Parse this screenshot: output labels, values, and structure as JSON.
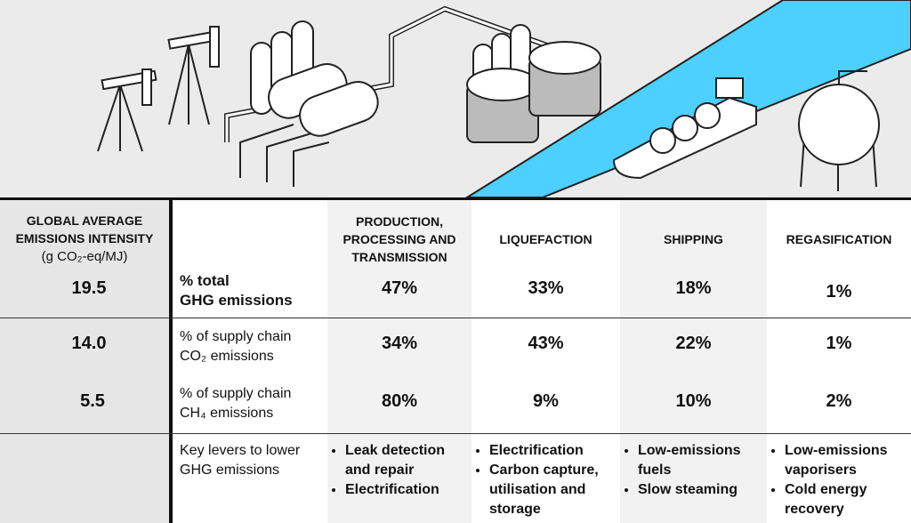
{
  "left_header": {
    "title": "GLOBAL AVERAGE EMISSIONS INTENSITY",
    "unit": "(g CO₂-eq/MJ)"
  },
  "columns": [
    "PRODUCTION, PROCESSING AND TRANSMISSION",
    "LIQUEFACTION",
    "SHIPPING",
    "REGASIFICATION"
  ],
  "rows": [
    {
      "intensity": "19.5",
      "label": "% total\nGHG emissions",
      "values": [
        "47%",
        "33%",
        "18%",
        "1%"
      ]
    },
    {
      "intensity": "14.0",
      "label": "% of supply chain\nCO₂ emissions",
      "values": [
        "34%",
        "43%",
        "22%",
        "1%"
      ]
    },
    {
      "intensity": "5.5",
      "label": "% of supply chain\nCH₄ emissions",
      "values": [
        "80%",
        "9%",
        "10%",
        "2%"
      ]
    }
  ],
  "levers": {
    "label": "Key levers to lower\nGHG emissions",
    "items": [
      [
        "Leak detection and repair",
        "Electrification"
      ],
      [
        "Electrification",
        "Carbon capture, utilisation and storage"
      ],
      [
        "Low-emissions fuels",
        "Slow steaming"
      ],
      [
        "Low-emissions vaporisers",
        "Cold energy recovery"
      ]
    ]
  }
}
